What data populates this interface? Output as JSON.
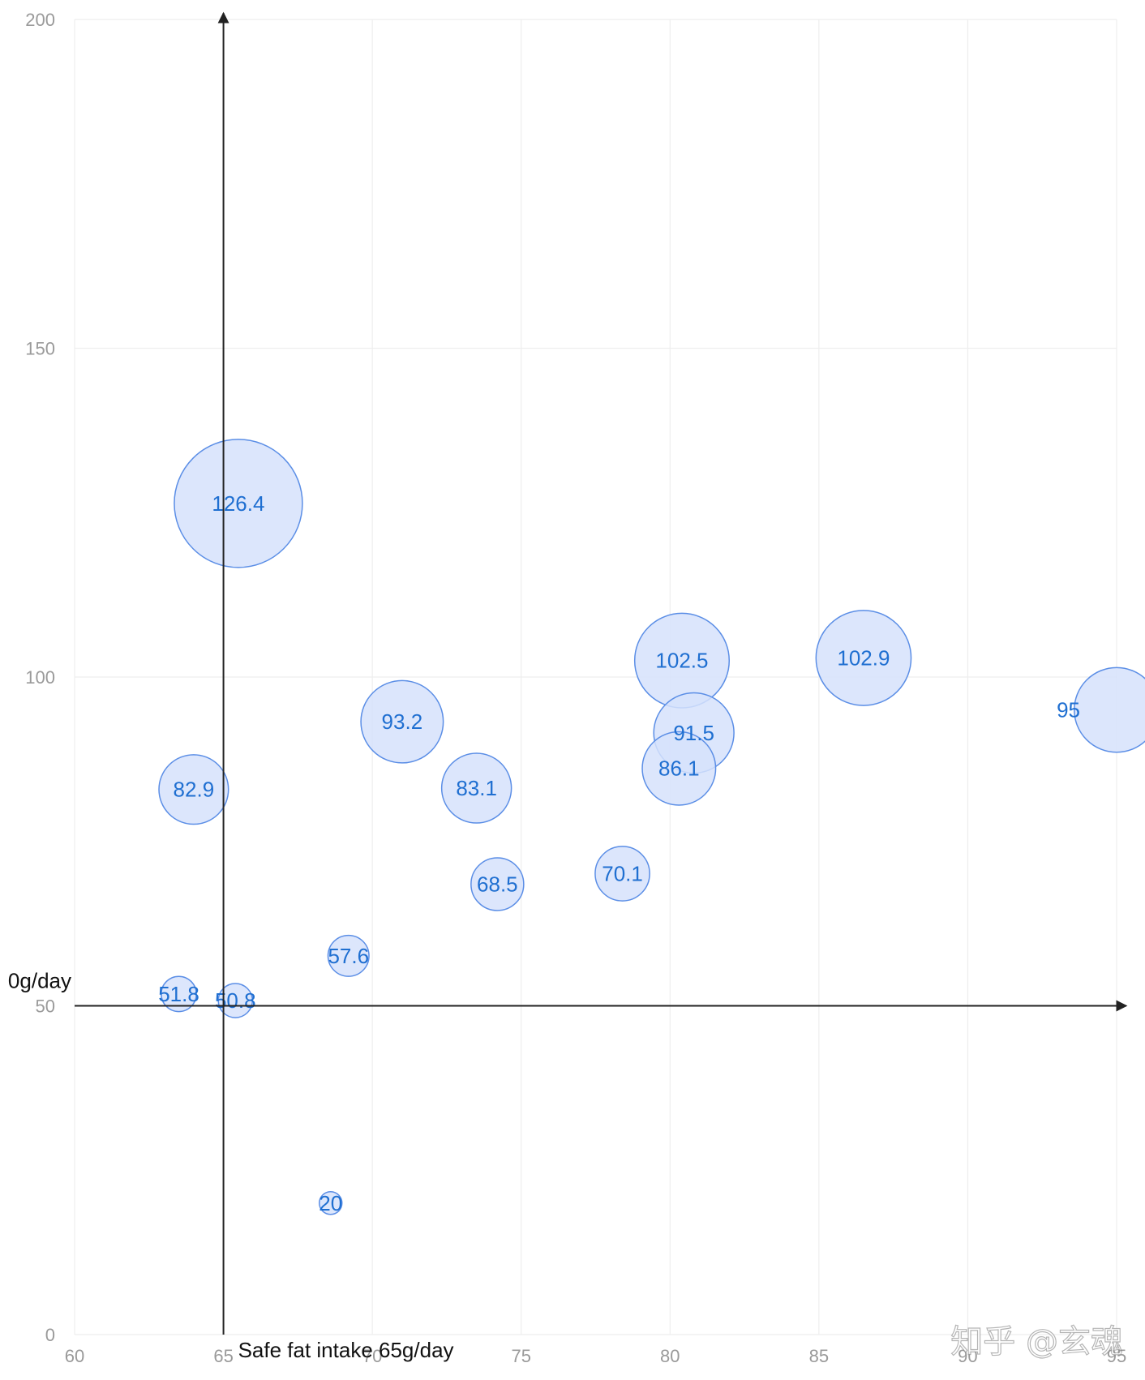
{
  "chart_data": {
    "type": "scatter",
    "title": "",
    "xlabel": "",
    "ylabel": "",
    "xlim": [
      60,
      95
    ],
    "ylim": [
      0,
      200
    ],
    "x_ticks": [
      60,
      65,
      70,
      75,
      80,
      85,
      90,
      95
    ],
    "y_ticks": [
      0,
      50,
      100,
      150,
      200
    ],
    "grid": true,
    "bubble_color": "#d6e2fb",
    "bubble_stroke": "#5b8ee6",
    "label_color": "#1f6fd1",
    "points": [
      {
        "x": 65.5,
        "y": 126.4,
        "size": 126.4,
        "label": "126.4"
      },
      {
        "x": 86.5,
        "y": 102.9,
        "size": 102.9,
        "label": "102.9"
      },
      {
        "x": 80.4,
        "y": 102.5,
        "size": 102.5,
        "label": "102.5"
      },
      {
        "x": 95,
        "y": 95,
        "size": 95,
        "label": "95"
      },
      {
        "x": 71.0,
        "y": 93.2,
        "size": 93.2,
        "label": "93.2"
      },
      {
        "x": 80.8,
        "y": 91.5,
        "size": 91.5,
        "label": "91.5"
      },
      {
        "x": 80.3,
        "y": 86.1,
        "size": 86.1,
        "label": "86.1"
      },
      {
        "x": 73.5,
        "y": 83.1,
        "size": 83.1,
        "label": "83.1"
      },
      {
        "x": 64.0,
        "y": 82.9,
        "size": 82.9,
        "label": "82.9"
      },
      {
        "x": 78.4,
        "y": 70.1,
        "size": 70.1,
        "label": "70.1"
      },
      {
        "x": 74.2,
        "y": 68.5,
        "size": 68.5,
        "label": "68.5"
      },
      {
        "x": 69.2,
        "y": 57.6,
        "size": 57.6,
        "label": "57.6"
      },
      {
        "x": 63.5,
        "y": 51.8,
        "size": 51.8,
        "label": "51.8"
      },
      {
        "x": 65.4,
        "y": 50.8,
        "size": 50.8,
        "label": "50.8"
      },
      {
        "x": 68.6,
        "y": 20,
        "size": 20,
        "label": "20"
      }
    ],
    "reference_lines": {
      "vertical": {
        "x": 65,
        "label": "Safe fat intake 65g/day"
      },
      "horizontal": {
        "y": 50,
        "label": "0g/day"
      }
    }
  },
  "watermark": "知乎 @玄魂"
}
